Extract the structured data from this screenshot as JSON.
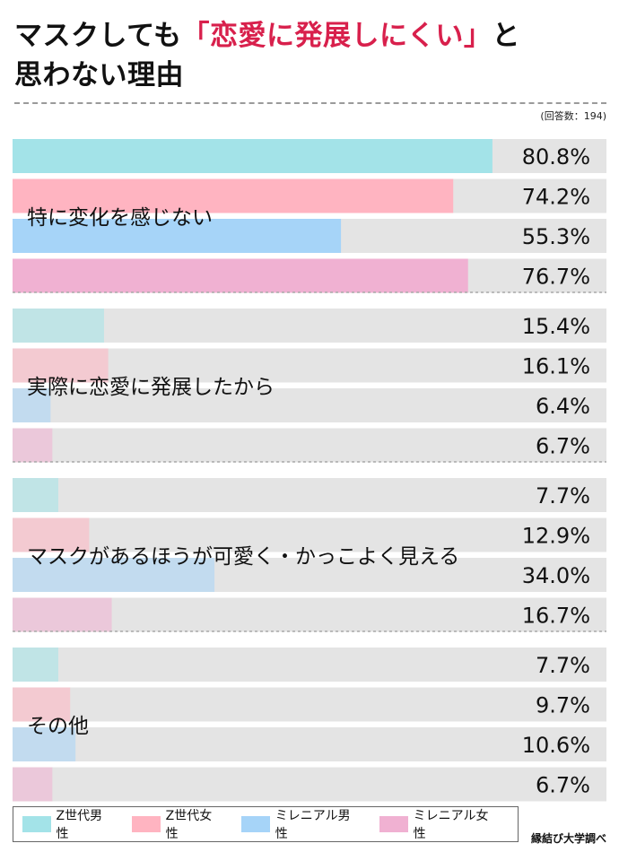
{
  "header": {
    "title_pre": "マスクしても",
    "title_accent": "「恋愛に発展しにくい」",
    "title_post": "と",
    "title_line2": "思わない理由",
    "respondents": "(回答数：194)"
  },
  "source": "縁結び大学調べ",
  "colors": {
    "z_male": "#a3e3e8",
    "z_female": "#ffb4c1",
    "millennial_male": "#a6d4f8",
    "millennial_female": "#f0b1d2",
    "track": "#e4e4e4",
    "accent": "#d8204c"
  },
  "chart_data": {
    "type": "bar",
    "orientation": "horizontal",
    "unit": "%",
    "xlim": [
      0,
      100
    ],
    "series": [
      {
        "name": "Z世代男性",
        "color": "#a3e3e8"
      },
      {
        "name": "Z世代女性",
        "color": "#ffb4c1"
      },
      {
        "name": "ミレニアル男性",
        "color": "#a6d4f8"
      },
      {
        "name": "ミレニアル女性",
        "color": "#f0b1d2"
      }
    ],
    "groups": [
      {
        "label": "特に変化を感じない",
        "values": [
          80.8,
          74.2,
          55.3,
          76.7
        ],
        "value_labels": [
          "80.8%",
          "74.2%",
          "55.3%",
          "76.7%"
        ],
        "emphasis": true
      },
      {
        "label": "実際に恋愛に発展したから",
        "values": [
          15.4,
          16.1,
          6.4,
          6.7
        ],
        "value_labels": [
          "15.4%",
          "16.1%",
          "6.4%",
          "6.7%"
        ],
        "emphasis": false
      },
      {
        "label": "マスクがあるほうが可愛く・かっこよく見える",
        "values": [
          7.7,
          12.9,
          34.0,
          16.7
        ],
        "value_labels": [
          "7.7%",
          "12.9%",
          "34.0%",
          "16.7%"
        ],
        "emphasis": false
      },
      {
        "label": "その他",
        "values": [
          7.7,
          9.7,
          10.6,
          6.7
        ],
        "value_labels": [
          "7.7%",
          "9.7%",
          "10.6%",
          "6.7%"
        ],
        "emphasis": false
      }
    ]
  }
}
